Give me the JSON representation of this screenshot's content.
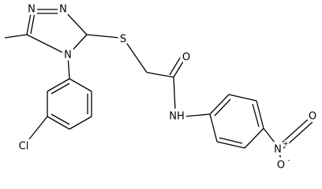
{
  "atoms": {
    "n1": "N",
    "n2": "N",
    "n4": "N",
    "s": "S",
    "o_carbonyl": "O",
    "nh": "NH",
    "n_nitro": "N",
    "n_nitro_charge": "+",
    "o_nitro_top": "O",
    "o_nitro_bottom": "O",
    "o_nitro_bottom_charge": "-",
    "cl": "Cl"
  }
}
